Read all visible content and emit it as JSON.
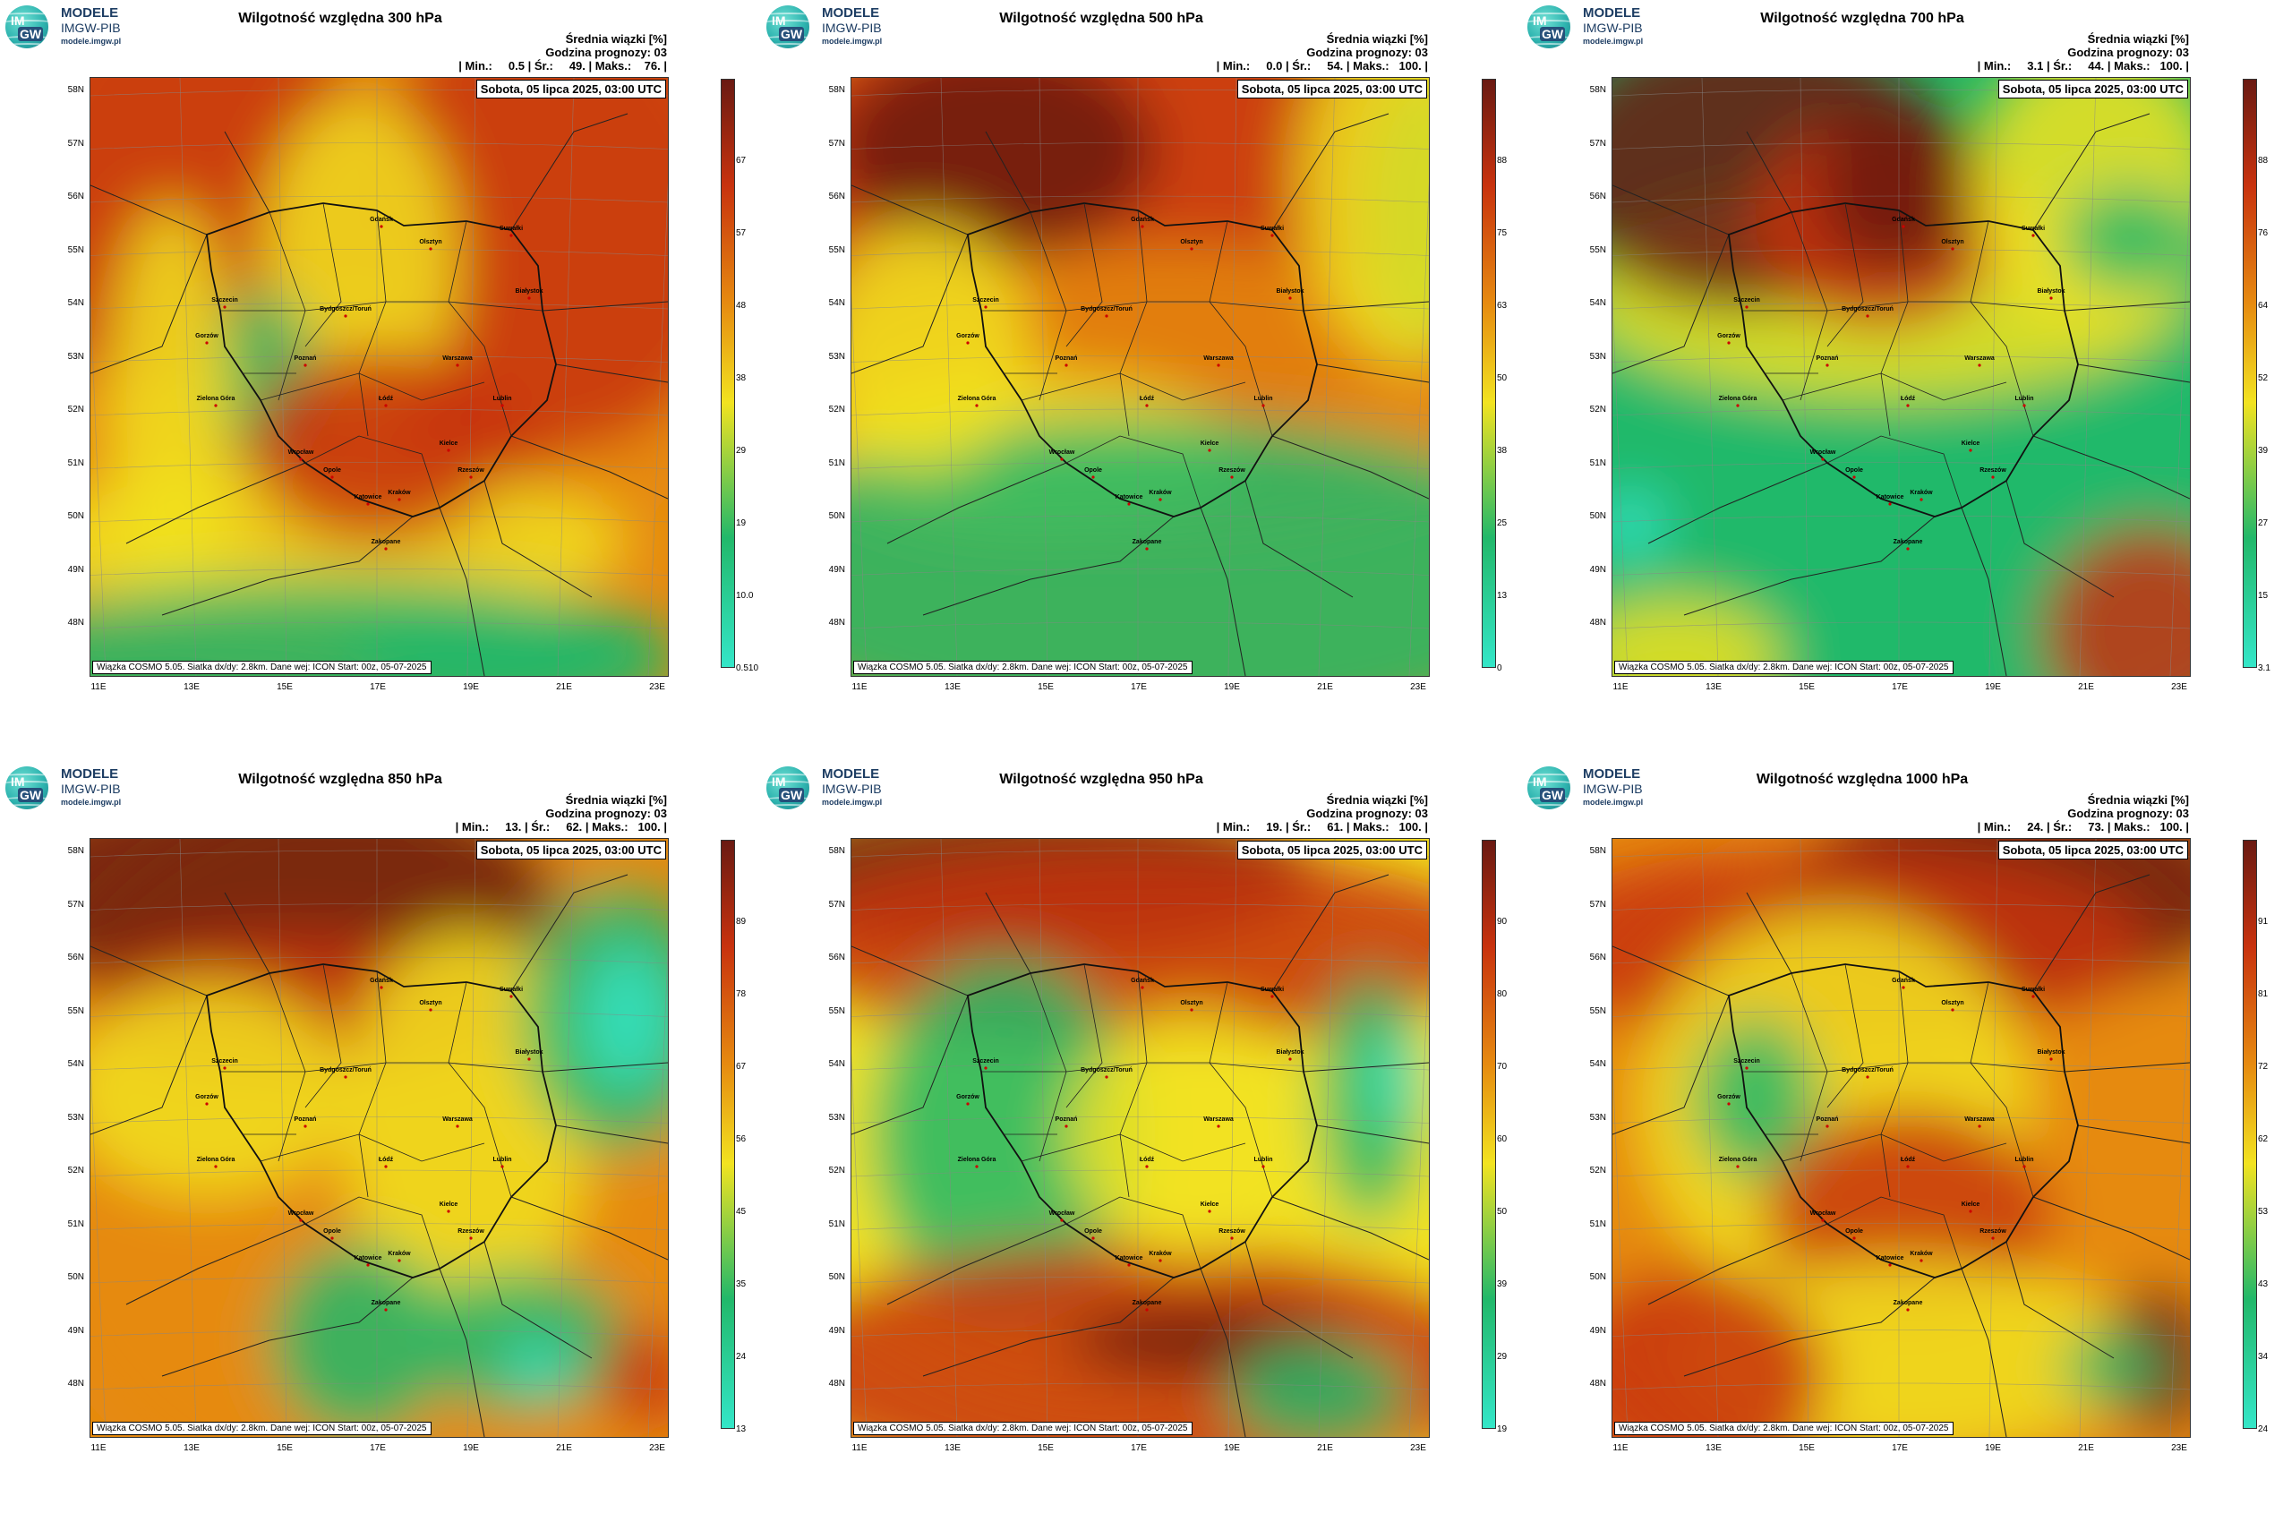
{
  "logo": {
    "line1": "MODELE",
    "line2": "IMGW-PIB",
    "line3": "modele.imgw.pl",
    "mark_top": "IM",
    "mark_bottom": "GW"
  },
  "header": {
    "right_line1": "Średnia wiązki [%]",
    "right_line2": "Godzina prognozy: 03"
  },
  "date_label": "Sobota, 05 lipca 2025, 03:00 UTC",
  "footer_text": "Wiązka COSMO 5.05. Siatka dx/dy: 2.8km. Dane wej: ICON Start: 00z, 05-07-2025",
  "lat_labels": [
    "58N",
    "57N",
    "56N",
    "55N",
    "54N",
    "53N",
    "52N",
    "51N",
    "50N",
    "49N",
    "48N"
  ],
  "lon_labels": [
    "11E",
    "13E",
    "15E",
    "17E",
    "19E",
    "21E",
    "23E"
  ],
  "cities": [
    "Gdańsk",
    "Olsztyn",
    "Suwałki",
    "Białystok",
    "Szczecin",
    "Bydgoszcz/Toruń",
    "Gorzów",
    "Poznań",
    "Warszawa",
    "Zielona Góra",
    "Łódź",
    "Lublin",
    "Wrocław",
    "Kielce",
    "Opole",
    "Katowice",
    "Kraków",
    "Rzeszów",
    "Zakopane"
  ],
  "colors": {
    "wet": "#34e6c8",
    "mid_green": "#22b86a",
    "yellow": "#f2e320",
    "orange": "#e68a10",
    "dry_red": "#c8320e",
    "dark_red": "#6a1a12"
  },
  "panels": [
    {
      "title": "Wilgotność względna 300 hPa",
      "stats": "| Min.:     0.5 | Śr.:     49. | Maks.:    76. |",
      "colorbar_ticks": [
        "67",
        "57",
        "48",
        "38",
        "29",
        "19",
        "10.0",
        "0.510"
      ],
      "pattern": "p300"
    },
    {
      "title": "Wilgotność względna 500 hPa",
      "stats": "| Min.:     0.0 | Śr.:     54. | Maks.:   100. |",
      "colorbar_ticks": [
        "88",
        "75",
        "63",
        "50",
        "38",
        "25",
        "13",
        "0"
      ],
      "pattern": "p500"
    },
    {
      "title": "Wilgotność względna 700 hPa",
      "stats": "| Min.:     3.1 | Śr.:     44. | Maks.:   100. |",
      "colorbar_ticks": [
        "88",
        "76",
        "64",
        "52",
        "39",
        "27",
        "15",
        "3.1"
      ],
      "pattern": "p700"
    },
    {
      "title": "Wilgotność względna 850 hPa",
      "stats": "| Min.:     13. | Śr.:     62. | Maks.:   100. |",
      "colorbar_ticks": [
        "89",
        "78",
        "67",
        "56",
        "45",
        "35",
        "24",
        "13"
      ],
      "pattern": "p850"
    },
    {
      "title": "Wilgotność względna 950 hPa",
      "stats": "| Min.:     19. | Śr.:     61. | Maks.:   100. |",
      "colorbar_ticks": [
        "90",
        "80",
        "70",
        "60",
        "50",
        "39",
        "29",
        "19"
      ],
      "pattern": "p950"
    },
    {
      "title": "Wilgotność względna 1000 hPa",
      "stats": "| Min.:     24. | Śr.:     73. | Maks.:   100. |",
      "colorbar_ticks": [
        "91",
        "81",
        "72",
        "62",
        "53",
        "43",
        "34",
        "24"
      ],
      "pattern": "p1000"
    }
  ]
}
